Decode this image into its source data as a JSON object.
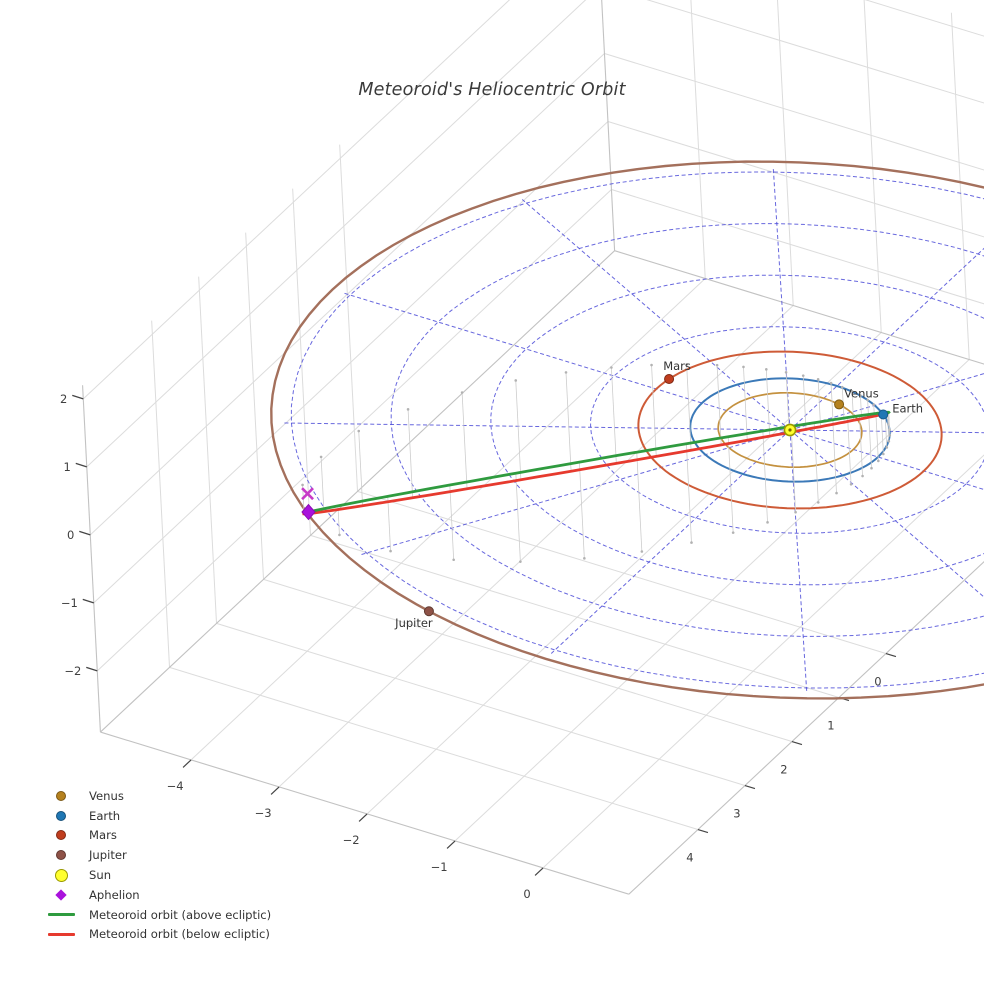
{
  "title": "Meteoroid's Heliocentric Orbit",
  "chart_data": {
    "type": "3d-orbit-plot",
    "title": "Meteoroid's Heliocentric Orbit",
    "axes": {
      "x_ticks": [
        -4,
        -3,
        -2,
        -1,
        0
      ],
      "y_ticks": [
        0,
        1,
        2,
        3,
        4
      ],
      "z_ticks": [
        2,
        1,
        0,
        -1,
        -2
      ],
      "x_range": [
        -5.03,
        0.975
      ],
      "y_range": [
        -5.47,
        5.47
      ],
      "z_range": [
        -2.9,
        2.2
      ],
      "grid": true
    },
    "ecliptic_grid": {
      "ring_radii_au": [
        1,
        2,
        3,
        4,
        5
      ],
      "radial_step_deg": 30,
      "radial_max_au": 5.08,
      "color": "#4d4dd8",
      "style": "dashed"
    },
    "sun": {
      "label": "Sun",
      "color": "#ffff2e",
      "edge_color": "#9a9a00"
    },
    "planets": [
      {
        "name": "Venus",
        "orbit_radius_au": 0.72,
        "position_angle_deg": -75,
        "orbit_color": "#c4913f",
        "marker_color": "#b5811e",
        "marker_edge": "#7d5a12"
      },
      {
        "name": "Earth",
        "orbit_radius_au": 1.0,
        "position_angle_deg": -49,
        "orbit_color": "#3b79b8",
        "marker_color": "#1f77b4",
        "marker_edge": "#155a8a"
      },
      {
        "name": "Mars",
        "orbit_radius_au": 1.52,
        "position_angle_deg": 189,
        "orbit_color": "#ce5b37",
        "marker_color": "#c03d1e",
        "marker_edge": "#7e2813"
      },
      {
        "name": "Jupiter",
        "orbit_radius_au": 5.2,
        "position_angle_deg": 106,
        "orbit_color": "#a4705c",
        "marker_color": "#8e5247",
        "marker_edge": "#5f3a30"
      }
    ],
    "meteoroid": {
      "perihelion_au": 1.0,
      "aphelion_au": 5.18,
      "inclination_deg": 40,
      "periapsis_angle_deg": -49.4,
      "above_ecliptic": {
        "label": "Meteoroid orbit (above ecliptic)",
        "color": "#2f9b3f"
      },
      "below_ecliptic": {
        "label": "Meteoroid orbit (below ecliptic)",
        "color": "#e63a2e"
      },
      "stem_color": "#cdcdcd",
      "stem_dot_color": "#b2b2b2"
    },
    "aphelion_marker": {
      "label": "Aphelion",
      "color": "#a912dc",
      "edge_color": "#8a0cb4",
      "x_color": "#c73ac7"
    },
    "legend": [
      {
        "label": "Venus",
        "swatch": "dot",
        "color": "#b5811e"
      },
      {
        "label": "Earth",
        "swatch": "dot",
        "color": "#1f77b4"
      },
      {
        "label": "Mars",
        "swatch": "dot",
        "color": "#c03d1e"
      },
      {
        "label": "Jupiter",
        "swatch": "dot",
        "color": "#8e5247"
      },
      {
        "label": "Sun",
        "swatch": "sun",
        "color": "#ffff2e"
      },
      {
        "label": "Aphelion",
        "swatch": "diamond",
        "color": "#a912dc"
      },
      {
        "label": "Meteoroid orbit (above ecliptic)",
        "swatch": "line",
        "color": "#2f9b3f"
      },
      {
        "label": "Meteoroid orbit (below ecliptic)",
        "swatch": "line",
        "color": "#e63a2e"
      }
    ]
  }
}
